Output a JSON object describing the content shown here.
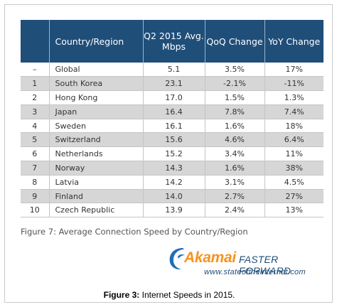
{
  "table": {
    "headers": {
      "country": "Country/Region",
      "speed": "Q2 2015 Avg. Mbps",
      "qoq": "QoQ Change",
      "yoy": "YoY Change"
    },
    "rows": [
      {
        "rank": "–",
        "country": "Global",
        "speed": "5.1",
        "qoq": "3.5%",
        "yoy": "17%"
      },
      {
        "rank": "1",
        "country": "South Korea",
        "speed": "23.1",
        "qoq": "-2.1%",
        "yoy": "-11%"
      },
      {
        "rank": "2",
        "country": "Hong Kong",
        "speed": "17.0",
        "qoq": "1.5%",
        "yoy": "1.3%"
      },
      {
        "rank": "3",
        "country": "Japan",
        "speed": "16.4",
        "qoq": "7.8%",
        "yoy": "7.4%"
      },
      {
        "rank": "4",
        "country": "Sweden",
        "speed": "16.1",
        "qoq": "1.6%",
        "yoy": "18%"
      },
      {
        "rank": "5",
        "country": "Switzerland",
        "speed": "15.6",
        "qoq": "4.6%",
        "yoy": "6.4%"
      },
      {
        "rank": "6",
        "country": "Netherlands",
        "speed": "15.2",
        "qoq": "3.4%",
        "yoy": "11%"
      },
      {
        "rank": "7",
        "country": "Norway",
        "speed": "14.3",
        "qoq": "1.6%",
        "yoy": "38%"
      },
      {
        "rank": "8",
        "country": "Latvia",
        "speed": "14.2",
        "qoq": "3.1%",
        "yoy": "4.5%"
      },
      {
        "rank": "9",
        "country": "Finland",
        "speed": "14.0",
        "qoq": "2.7%",
        "yoy": "27%"
      },
      {
        "rank": "10",
        "country": "Czech Republic",
        "speed": "13.9",
        "qoq": "2.4%",
        "yoy": "13%"
      }
    ]
  },
  "caption": "Figure 7: Average Connection Speed by Country/Region",
  "brand": {
    "name": "Akamai",
    "tagline": "FASTER FORWARD",
    "url": "www.stateoftheinternet.com"
  },
  "figure_title": {
    "label": "Figure 3:",
    "text": " Internet Speeds in 2015."
  },
  "colors": {
    "header_bg": "#1f4e79",
    "stripe": "#d6d6d6",
    "brand_orange": "#f7931e",
    "brand_blue": "#1f4e79"
  }
}
